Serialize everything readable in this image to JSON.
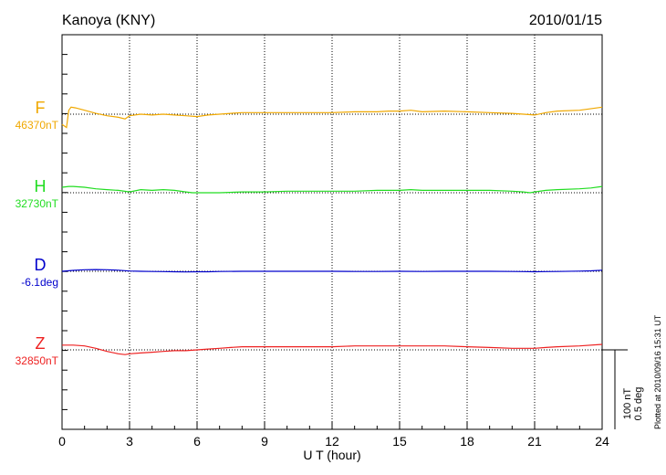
{
  "title": "Kanoya (KNY)",
  "date": "2010/01/15",
  "plotted_note": "Plotted at 2010/09/16 15:31 UT",
  "chart_data": {
    "type": "line",
    "xlabel": "U T (hour)",
    "xlim": [
      0,
      24
    ],
    "x_ticks": [
      "0",
      "3",
      "6",
      "9",
      "12",
      "15",
      "18",
      "21",
      "24"
    ],
    "grid": "dotted",
    "scale_bar": {
      "label_nt": "100 nT",
      "label_deg": "0.5 deg"
    },
    "series": [
      {
        "name": "F",
        "baseline_label": "46370nT",
        "color": "#f0a800",
        "unit": "nT",
        "baseline": 46370,
        "x": [
          0,
          0.1,
          0.2,
          0.3,
          0.4,
          0.6,
          1.0,
          1.5,
          2.0,
          2.5,
          2.8,
          3.0,
          3.5,
          4.0,
          4.5,
          5.0,
          5.5,
          6.0,
          6.5,
          7.0,
          7.5,
          8.0,
          9.0,
          10.0,
          11.0,
          12.0,
          13.0,
          14.0,
          14.5,
          15.0,
          15.5,
          16.0,
          17.0,
          18.0,
          19.0,
          20.0,
          20.5,
          21.0,
          21.5,
          22.0,
          23.0,
          24.0
        ],
        "y": [
          46357,
          46355,
          46353,
          46375,
          46379,
          46378,
          46375,
          46371,
          46368,
          46366,
          46364,
          46368,
          46370,
          46369,
          46370,
          46369,
          46368,
          46367,
          46369,
          46370,
          46371,
          46372,
          46372,
          46372,
          46372,
          46372,
          46373,
          46373,
          46374,
          46374,
          46375,
          46373,
          46374,
          46373,
          46372,
          46371,
          46370,
          46369,
          46372,
          46374,
          46375,
          46379
        ]
      },
      {
        "name": "H",
        "baseline_label": "32730nT",
        "color": "#22dd22",
        "unit": "nT",
        "baseline": 32730,
        "x": [
          0,
          0.3,
          0.5,
          1.0,
          1.5,
          2.0,
          2.5,
          3.0,
          3.5,
          4.0,
          4.5,
          5.0,
          5.5,
          5.8,
          6.0,
          7.0,
          8.0,
          9.0,
          10.0,
          11.0,
          12.0,
          13.0,
          14.0,
          15.0,
          15.5,
          16.0,
          17.0,
          18.0,
          19.0,
          20.0,
          20.5,
          20.8,
          21.0,
          21.5,
          22.0,
          23.0,
          23.5,
          24.0
        ],
        "y": [
          32737,
          32738,
          32738,
          32737,
          32735,
          32734,
          32733,
          32731,
          32734,
          32733,
          32734,
          32733,
          32731,
          32730,
          32730,
          32730,
          32731,
          32731,
          32732,
          32732,
          32732,
          32732,
          32733,
          32733,
          32734,
          32733,
          32733,
          32733,
          32733,
          32732,
          32731,
          32730,
          32731,
          32733,
          32734,
          32735,
          32736,
          32738
        ]
      },
      {
        "name": "D",
        "baseline_label": "-6.1deg",
        "color": "#0000cc",
        "unit": "deg",
        "baseline": -6.1,
        "x": [
          0,
          0.5,
          1.0,
          1.5,
          2.0,
          2.5,
          3.0,
          3.5,
          4.0,
          4.5,
          5.0,
          5.5,
          6.0,
          6.5,
          7.0,
          8.0,
          9.0,
          10.0,
          11.0,
          12.0,
          13.0,
          14.0,
          15.0,
          16.0,
          17.0,
          18.0,
          19.0,
          20.0,
          20.5,
          21.0,
          21.5,
          22.0,
          23.0,
          23.5,
          24.0
        ],
        "y": [
          -6.1,
          -6.094,
          -6.09,
          -6.089,
          -6.09,
          -6.093,
          -6.098,
          -6.1,
          -6.101,
          -6.102,
          -6.103,
          -6.104,
          -6.103,
          -6.103,
          -6.101,
          -6.1,
          -6.1,
          -6.1,
          -6.1,
          -6.1,
          -6.101,
          -6.101,
          -6.1,
          -6.101,
          -6.1,
          -6.1,
          -6.1,
          -6.101,
          -6.102,
          -6.103,
          -6.102,
          -6.101,
          -6.099,
          -6.097,
          -6.093
        ]
      },
      {
        "name": "Z",
        "baseline_label": "32850nT",
        "color": "#ee2222",
        "unit": "nT",
        "baseline": 32850,
        "x": [
          0,
          0.5,
          1.0,
          1.5,
          2.0,
          2.5,
          2.8,
          3.0,
          3.5,
          4.0,
          4.5,
          5.0,
          5.5,
          6.0,
          6.5,
          7.0,
          7.5,
          8.0,
          9.0,
          10.0,
          11.0,
          12.0,
          13.0,
          14.0,
          15.0,
          16.0,
          17.0,
          18.0,
          19.0,
          20.0,
          20.5,
          21.0,
          21.5,
          22.0,
          23.0,
          24.0
        ],
        "y": [
          32856,
          32856,
          32855,
          32852,
          32848,
          32845,
          32844,
          32845,
          32846,
          32847,
          32848,
          32849,
          32849,
          32850,
          32851,
          32852,
          32853,
          32854,
          32854,
          32854,
          32854,
          32854,
          32855,
          32855,
          32855,
          32855,
          32855,
          32854,
          32853,
          32852,
          32852,
          32852,
          32853,
          32854,
          32855,
          32857
        ]
      }
    ]
  }
}
